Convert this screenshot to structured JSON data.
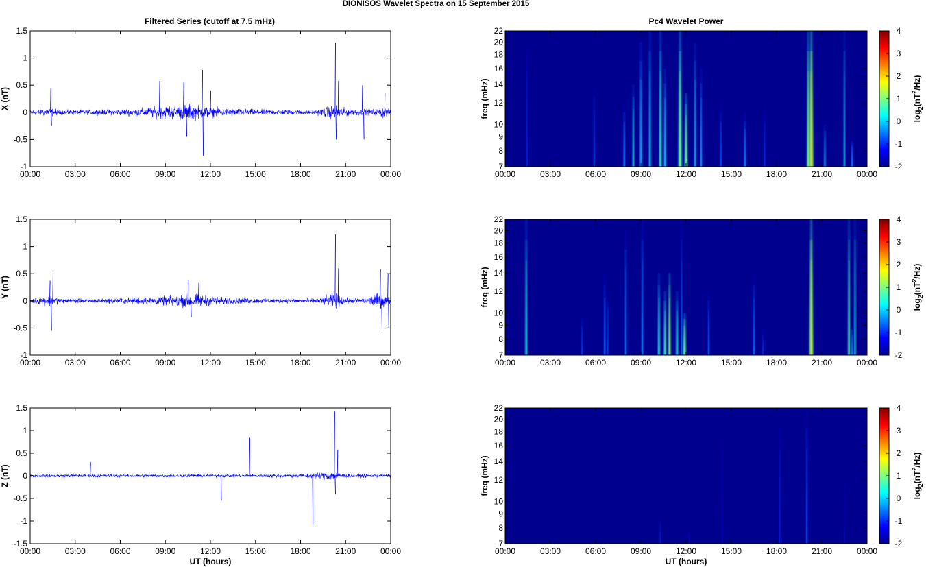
{
  "title": "DIONISOS Wavelet Spectra on 15 September 2015",
  "left_title": "Filtered Series (cutoff at 7.5 mHz)",
  "right_title": "Pc4 Wavelet Power",
  "colors": {
    "series": "#0000ff",
    "background_spectrum": "#00008f",
    "axis": "#000000"
  },
  "chart_data": [
    {
      "type": "line",
      "ylabel": "X (nT)",
      "xlabel": "",
      "ylim": [
        -1,
        1.5
      ],
      "yticks": [
        "1.5",
        "1",
        "0.5",
        "0",
        "-0.5",
        "-1"
      ],
      "xticks": [
        "00:00",
        "03:00",
        "06:00",
        "09:00",
        "12:00",
        "15:00",
        "18:00",
        "21:00",
        "00:00"
      ],
      "xlim_hours": [
        0,
        24
      ],
      "series": [
        {
          "noise_profile": [
            [
              0,
              0.06
            ],
            [
              1.3,
              0.12
            ],
            [
              2,
              0.06
            ],
            [
              5,
              0.07
            ],
            [
              7,
              0.1
            ],
            [
              9,
              0.18
            ],
            [
              10.5,
              0.22
            ],
            [
              12,
              0.15
            ],
            [
              13,
              0.1
            ],
            [
              16,
              0.07
            ],
            [
              19,
              0.06
            ],
            [
              20.3,
              0.2
            ],
            [
              21,
              0.1
            ],
            [
              23,
              0.08
            ],
            [
              23.5,
              0.15
            ],
            [
              24,
              0.06
            ]
          ]
        }
      ],
      "spikes": [
        [
          1.35,
          0.45
        ],
        [
          1.4,
          -0.25
        ],
        [
          8.6,
          0.58
        ],
        [
          10.2,
          0.55
        ],
        [
          10.4,
          -0.45
        ],
        [
          11.45,
          0.78
        ],
        [
          11.5,
          -0.8
        ],
        [
          12.0,
          0.4
        ],
        [
          20.3,
          1.28
        ],
        [
          20.35,
          -0.5
        ],
        [
          20.5,
          0.58
        ],
        [
          22.1,
          0.5
        ],
        [
          22.2,
          -0.5
        ],
        [
          23.6,
          0.35
        ]
      ],
      "grid": false
    },
    {
      "type": "line",
      "ylabel": "Y (nT)",
      "xlabel": "",
      "ylim": [
        -1,
        1.5
      ],
      "yticks": [
        "1.5",
        "1",
        "0.5",
        "0",
        "-0.5",
        "-1"
      ],
      "xticks": [
        "00:00",
        "03:00",
        "06:00",
        "09:00",
        "12:00",
        "15:00",
        "18:00",
        "21:00",
        "00:00"
      ],
      "xlim_hours": [
        0,
        24
      ],
      "series": [
        {
          "noise_profile": [
            [
              0,
              0.05
            ],
            [
              1.3,
              0.15
            ],
            [
              2,
              0.06
            ],
            [
              5,
              0.06
            ],
            [
              7,
              0.09
            ],
            [
              9,
              0.12
            ],
            [
              10.5,
              0.2
            ],
            [
              12,
              0.13
            ],
            [
              13.5,
              0.08
            ],
            [
              16,
              0.06
            ],
            [
              19,
              0.06
            ],
            [
              20.3,
              0.2
            ],
            [
              21,
              0.08
            ],
            [
              22,
              0.06
            ],
            [
              23.2,
              0.2
            ],
            [
              24,
              0.1
            ]
          ]
        }
      ],
      "spikes": [
        [
          1.3,
          0.37
        ],
        [
          1.4,
          -0.55
        ],
        [
          1.5,
          0.52
        ],
        [
          10.5,
          0.38
        ],
        [
          10.7,
          -0.3
        ],
        [
          11.2,
          0.33
        ],
        [
          20.3,
          1.22
        ],
        [
          20.4,
          -0.2
        ],
        [
          20.5,
          0.6
        ],
        [
          23.3,
          0.58
        ],
        [
          23.4,
          -0.55
        ],
        [
          23.8,
          0.5
        ],
        [
          23.85,
          -0.5
        ]
      ],
      "grid": false
    },
    {
      "type": "line",
      "ylabel": "Z (nT)",
      "xlabel": "UT (hours)",
      "ylim": [
        -1.5,
        1.5
      ],
      "yticks": [
        "1.5",
        "1",
        "0.5",
        "0",
        "-0.5",
        "-1",
        "-1.5"
      ],
      "xticks": [
        "00:00",
        "03:00",
        "06:00",
        "09:00",
        "12:00",
        "15:00",
        "18:00",
        "21:00",
        "00:00"
      ],
      "xlim_hours": [
        0,
        24
      ],
      "series": [
        {
          "noise_profile": [
            [
              0,
              0.05
            ],
            [
              5,
              0.05
            ],
            [
              10,
              0.05
            ],
            [
              15,
              0.05
            ],
            [
              18,
              0.06
            ],
            [
              20.3,
              0.15
            ],
            [
              21,
              0.06
            ],
            [
              24,
              0.05
            ]
          ]
        }
      ],
      "spikes": [
        [
          4.0,
          0.3
        ],
        [
          12.7,
          -0.55
        ],
        [
          14.6,
          0.84
        ],
        [
          18.8,
          -1.08
        ],
        [
          20.25,
          1.42
        ],
        [
          20.3,
          -0.4
        ],
        [
          20.45,
          0.58
        ]
      ],
      "grid": false
    },
    {
      "type": "heatmap",
      "ylabel": "freq (mHz)",
      "xlabel": "",
      "ylim_mhz": [
        7,
        22
      ],
      "log_frequency_axis": true,
      "yticks": [
        "22",
        "20",
        "18",
        "16",
        "14",
        "12",
        "10",
        "9",
        "8",
        "7"
      ],
      "xticks": [
        "00:00",
        "03:00",
        "06:00",
        "09:00",
        "12:00",
        "15:00",
        "18:00",
        "21:00",
        "00:00"
      ],
      "colorbar": {
        "label": "log2(nT2/Hz)",
        "range": [
          -2,
          4
        ],
        "ticks": [
          "4",
          "3",
          "2",
          "1",
          "0",
          "-1",
          "-2"
        ],
        "colormap": "jet"
      },
      "bursts": [
        [
          1.45,
          22,
          0.06,
          -0.5
        ],
        [
          5.9,
          14,
          0.06,
          -0.3
        ],
        [
          7.9,
          12,
          0.07,
          0.2
        ],
        [
          8.5,
          14,
          0.07,
          0.8
        ],
        [
          9.0,
          20,
          0.08,
          0.5
        ],
        [
          9.6,
          22,
          0.08,
          0.6
        ],
        [
          10.3,
          22,
          0.09,
          1.0
        ],
        [
          10.6,
          16,
          0.08,
          0.7
        ],
        [
          11.6,
          22,
          0.12,
          1.4
        ],
        [
          12.0,
          13,
          0.1,
          1.5
        ],
        [
          12.6,
          20,
          0.07,
          0.6
        ],
        [
          13.0,
          16,
          0.07,
          0.4
        ],
        [
          14.3,
          12,
          0.07,
          -0.2
        ],
        [
          15.9,
          11,
          0.07,
          0.3
        ],
        [
          17.2,
          12,
          0.06,
          -0.4
        ],
        [
          20.1,
          22,
          0.09,
          1.6
        ],
        [
          20.3,
          22,
          0.14,
          2.0
        ],
        [
          21.2,
          10,
          0.06,
          0.6
        ],
        [
          22.5,
          22,
          0.06,
          0.7
        ],
        [
          23.0,
          9,
          0.07,
          0.2
        ]
      ],
      "grid": false
    },
    {
      "type": "heatmap",
      "ylabel": "freq (mHz)",
      "xlabel": "",
      "ylim_mhz": [
        7,
        22
      ],
      "log_frequency_axis": true,
      "yticks": [
        "22",
        "20",
        "18",
        "16",
        "14",
        "12",
        "10",
        "9",
        "8",
        "7"
      ],
      "xticks": [
        "00:00",
        "03:00",
        "06:00",
        "09:00",
        "12:00",
        "15:00",
        "18:00",
        "21:00",
        "00:00"
      ],
      "colorbar": {
        "label": "log2(nT2/Hz)",
        "range": [
          -2,
          4
        ],
        "ticks": [
          "4",
          "3",
          "2",
          "1",
          "0",
          "-1",
          "-2"
        ],
        "colormap": "jet"
      },
      "bursts": [
        [
          1.4,
          22,
          0.08,
          0.8
        ],
        [
          5.1,
          10,
          0.06,
          -0.3
        ],
        [
          6.6,
          14,
          0.07,
          0.0
        ],
        [
          6.8,
          12,
          0.06,
          -0.2
        ],
        [
          8.0,
          20,
          0.06,
          0.3
        ],
        [
          9.1,
          22,
          0.06,
          0.4
        ],
        [
          10.2,
          14,
          0.08,
          0.9
        ],
        [
          10.6,
          12,
          0.08,
          1.3
        ],
        [
          10.9,
          14,
          0.08,
          1.8
        ],
        [
          11.4,
          12,
          0.08,
          0.9
        ],
        [
          11.9,
          10,
          0.1,
          1.5
        ],
        [
          11.7,
          22,
          0.05,
          0.2
        ],
        [
          13.5,
          12,
          0.06,
          0.1
        ],
        [
          16.5,
          14,
          0.06,
          0.2
        ],
        [
          17.1,
          9,
          0.05,
          -0.4
        ],
        [
          20.3,
          22,
          0.13,
          1.9
        ],
        [
          22.8,
          22,
          0.07,
          1.4
        ],
        [
          23.2,
          22,
          0.06,
          1.0
        ],
        [
          23.0,
          9,
          0.06,
          0.5
        ]
      ],
      "grid": false
    },
    {
      "type": "heatmap",
      "ylabel": "freq (mHz)",
      "xlabel": "UT (hours)",
      "ylim_mhz": [
        7,
        22
      ],
      "log_frequency_axis": true,
      "yticks": [
        "22",
        "20",
        "18",
        "16",
        "14",
        "12",
        "10",
        "9",
        "8",
        "7"
      ],
      "xticks": [
        "00:00",
        "03:00",
        "06:00",
        "09:00",
        "12:00",
        "15:00",
        "18:00",
        "21:00",
        "00:00"
      ],
      "colorbar": {
        "label": "log2(nT2/Hz)",
        "range": [
          -2,
          4
        ],
        "ticks": [
          "4",
          "3",
          "2",
          "1",
          "0",
          "-1",
          "-2"
        ],
        "colormap": "jet"
      },
      "bursts": [
        [
          10.3,
          9,
          0.05,
          -0.6
        ],
        [
          12.2,
          8,
          0.05,
          -1.0
        ],
        [
          14.4,
          22,
          0.05,
          -1.1
        ],
        [
          18.2,
          22,
          0.06,
          -0.5
        ],
        [
          18.3,
          8,
          0.05,
          -0.9
        ],
        [
          20.0,
          22,
          0.06,
          -0.1
        ],
        [
          22.5,
          14,
          0.05,
          -1.1
        ]
      ],
      "grid": false
    }
  ]
}
